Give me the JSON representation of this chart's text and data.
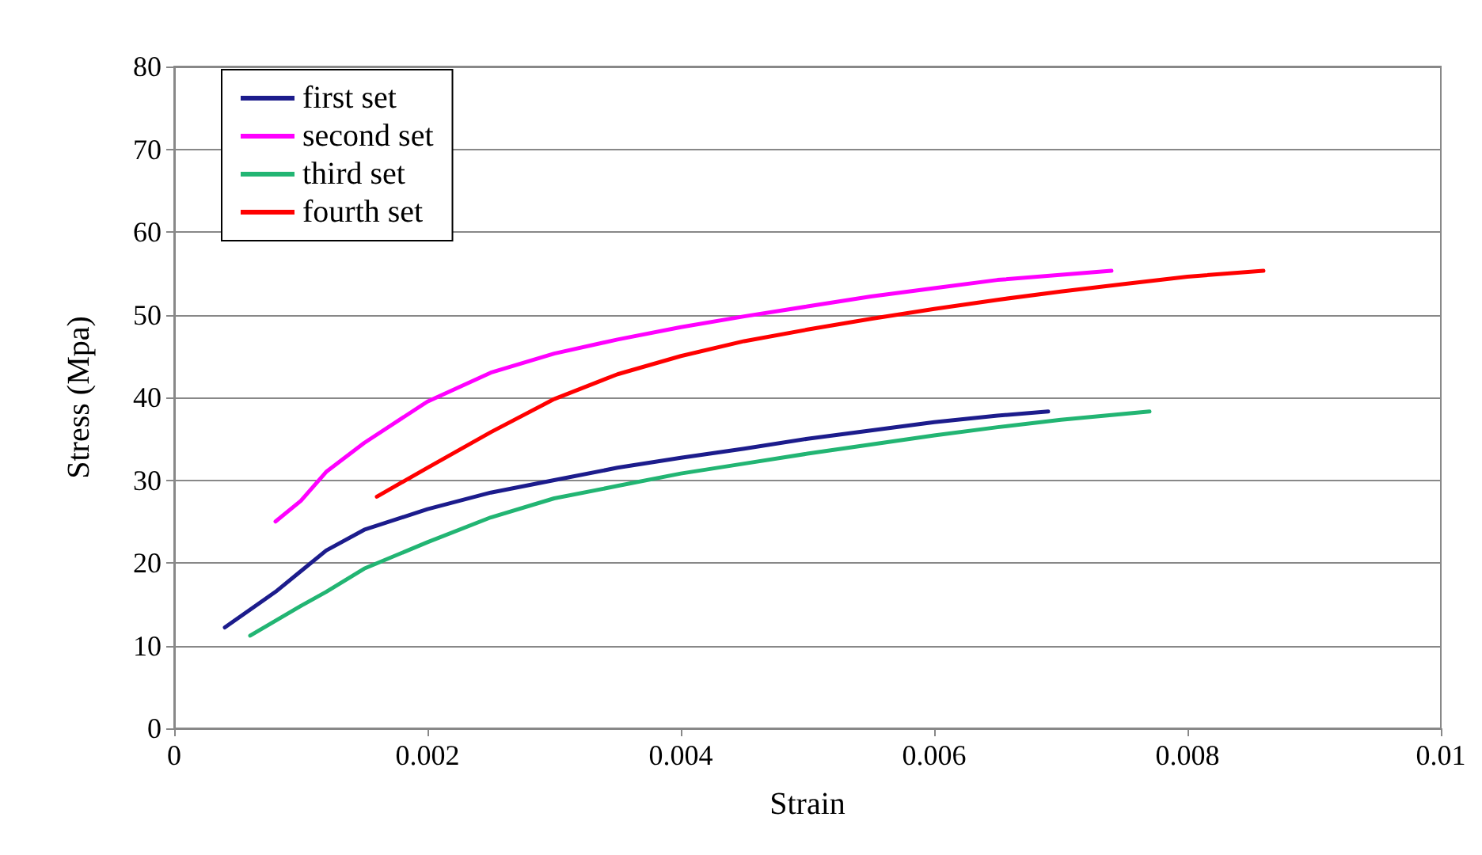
{
  "chart_data": {
    "type": "line",
    "xlabel": "Strain",
    "ylabel": "Stress (Mpa)",
    "xlim": [
      0,
      0.01
    ],
    "xticks": [
      0,
      0.002,
      0.004,
      0.006,
      0.008,
      0.01
    ],
    "ylim": [
      0,
      80
    ],
    "yticks": [
      0,
      10,
      20,
      30,
      40,
      50,
      60,
      70,
      80
    ],
    "grid": "y",
    "legend": "top left",
    "marker": "none",
    "line_style": "solid",
    "series": [
      {
        "name": "first set",
        "color": "#1c1c8c",
        "x": [
          0.0004,
          0.0008,
          0.001,
          0.0012,
          0.0015,
          0.002,
          0.0025,
          0.003,
          0.0035,
          0.004,
          0.0045,
          0.005,
          0.0055,
          0.006,
          0.0065,
          0.0069
        ],
        "values": [
          12.2,
          16.5,
          19,
          21.5,
          24,
          26.5,
          28.5,
          30,
          31.5,
          32.7,
          33.8,
          35,
          36,
          37,
          37.8,
          38.3
        ]
      },
      {
        "name": "second set",
        "color": "#ff00ff",
        "x": [
          0.0008,
          0.001,
          0.0012,
          0.0015,
          0.002,
          0.0025,
          0.003,
          0.0035,
          0.004,
          0.0045,
          0.005,
          0.0055,
          0.006,
          0.0065,
          0.0074
        ],
        "values": [
          25,
          27.5,
          31,
          34.5,
          39.5,
          43,
          45.3,
          47,
          48.5,
          49.8,
          51,
          52.2,
          53.2,
          54.2,
          55.3
        ]
      },
      {
        "name": "third set",
        "color": "#22b573",
        "x": [
          0.0006,
          0.0008,
          0.001,
          0.0012,
          0.0015,
          0.002,
          0.0025,
          0.003,
          0.0035,
          0.004,
          0.0045,
          0.005,
          0.0055,
          0.006,
          0.0065,
          0.007,
          0.0077
        ],
        "values": [
          11.2,
          13,
          14.8,
          16.5,
          19.3,
          22.5,
          25.5,
          27.8,
          29.3,
          30.8,
          32,
          33.2,
          34.3,
          35.4,
          36.4,
          37.3,
          38.3
        ]
      },
      {
        "name": "fourth set",
        "color": "#ff0000",
        "x": [
          0.0016,
          0.002,
          0.0025,
          0.003,
          0.0035,
          0.004,
          0.0045,
          0.005,
          0.0055,
          0.006,
          0.0065,
          0.007,
          0.0075,
          0.008,
          0.0086
        ],
        "values": [
          28,
          31.5,
          35.8,
          39.8,
          42.8,
          45,
          46.8,
          48.2,
          49.5,
          50.7,
          51.8,
          52.8,
          53.7,
          54.6,
          55.3
        ]
      }
    ]
  }
}
